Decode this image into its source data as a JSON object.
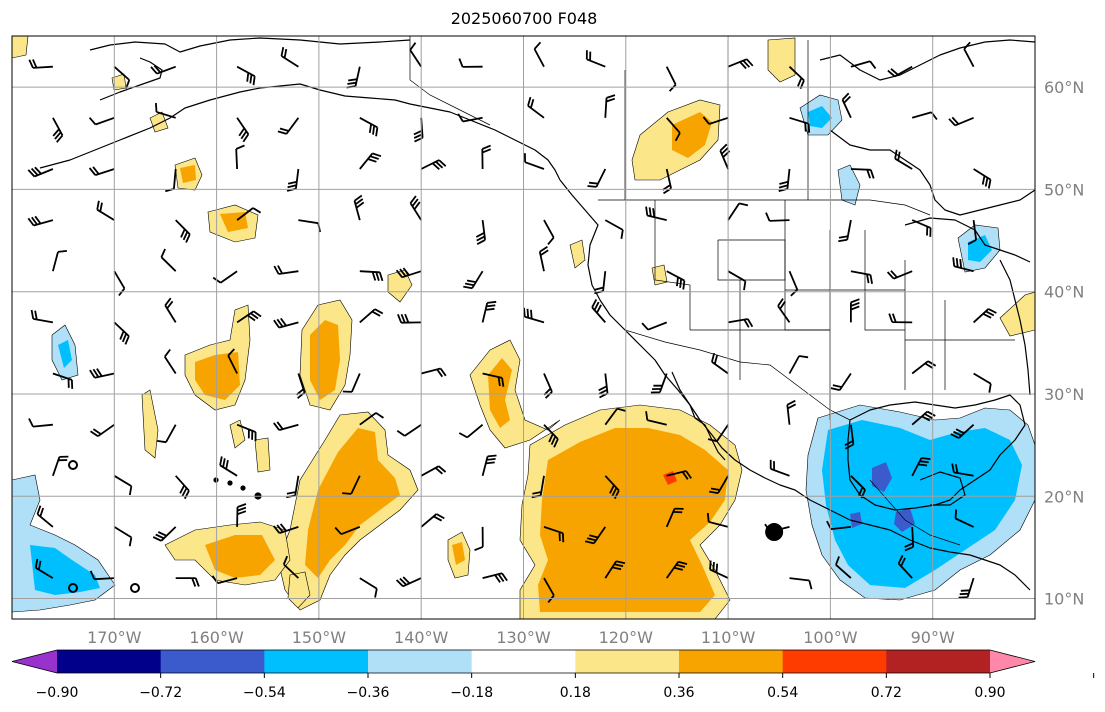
{
  "title": "2025060700 F048",
  "map": {
    "lon_labels": [
      {
        "lon": -170,
        "text": "170°W"
      },
      {
        "lon": -160,
        "text": "160°W"
      },
      {
        "lon": -150,
        "text": "150°W"
      },
      {
        "lon": -140,
        "text": "140°W"
      },
      {
        "lon": -130,
        "text": "130°W"
      },
      {
        "lon": -120,
        "text": "120°W"
      },
      {
        "lon": -110,
        "text": "110°W"
      },
      {
        "lon": -100,
        "text": "100°W"
      },
      {
        "lon": -90,
        "text": "90°W"
      }
    ],
    "lat_labels": [
      {
        "lat": 60,
        "text": "60°N"
      },
      {
        "lat": 50,
        "text": "50°N"
      },
      {
        "lat": 40,
        "text": "40°N"
      },
      {
        "lat": 30,
        "text": "30°N"
      },
      {
        "lat": 20,
        "text": "20°N"
      },
      {
        "lat": 10,
        "text": "10°N"
      }
    ],
    "extent": {
      "lon_min": -180,
      "lon_max": -80,
      "lat_min": 8,
      "lat_max": 65
    },
    "grid_color": "#a0a0a0",
    "label_color": "#808080"
  },
  "colorbar": {
    "ticks": [
      "−0.90",
      "−0.72",
      "−0.54",
      "−0.36",
      "−0.18",
      "0.18",
      "0.36",
      "0.54",
      "0.72",
      "0.90"
    ],
    "colors": [
      "#9932cc",
      "#00008b",
      "#3b5bcc",
      "#00bfff",
      "#b0e0f8",
      "#ffffff",
      "#fce68a",
      "#f8a400",
      "#ff3c00",
      "#b22222",
      "#ff88aa"
    ],
    "extend": "both"
  },
  "marker": {
    "lon": -105.5,
    "lat": 16.5
  }
}
